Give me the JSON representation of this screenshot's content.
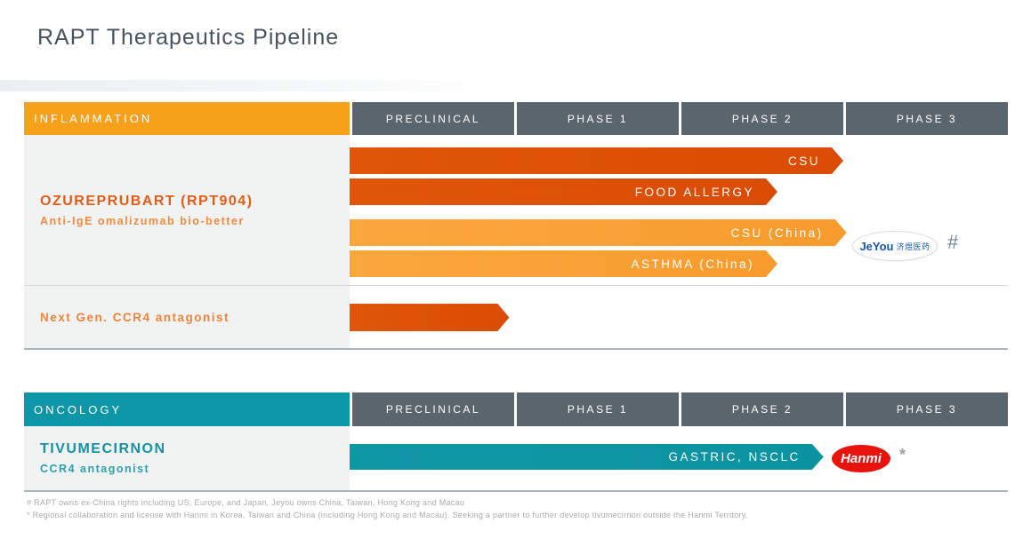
{
  "title": "RAPT Therapeutics Pipeline",
  "phases": [
    "PRECLINICAL",
    "PHASE 1",
    "PHASE 2",
    "PHASE 3"
  ],
  "colors": {
    "inflammation_header": "#f7a11a",
    "oncology_header": "#0d96a5",
    "phase_header": "#5a656e",
    "deep_orange_bar": "#dc5106",
    "light_orange_bar": "#f9a136",
    "teal_bar": "#0c93a2",
    "jeyou_blue": "#1a57a8",
    "hanmi_red": "#e8130c"
  },
  "sections": [
    {
      "name": "INFLAMMATION",
      "rows": [
        {
          "title": "OZUREPRUBART (RPT904)",
          "subtitle": "Anti-IgE omalizumab bio-better",
          "bars": [
            {
              "label": "CSU",
              "color": "deep-orange",
              "end_phase": 3.0
            },
            {
              "label": "FOOD ALLERGY",
              "color": "deep-orange",
              "end_phase": 2.6
            },
            {
              "label": "CSU (China)",
              "color": "light-orange",
              "end_phase": 3.02
            },
            {
              "label": "ASTHMA (China)",
              "color": "light-orange",
              "end_phase": 2.6
            }
          ],
          "partner_logo": {
            "name": "JeYou",
            "text": "JeYou",
            "cn": "济煜医药",
            "footnote_marker": "#"
          }
        },
        {
          "title": "Next Gen. CCR4 antagonist",
          "subtitle": "",
          "bars": [
            {
              "label": "",
              "color": "deep-orange",
              "end_phase": 0.97
            }
          ]
        }
      ]
    },
    {
      "name": "ONCOLOGY",
      "rows": [
        {
          "title": "TIVUMECIRNON",
          "subtitle": "CCR4 antagonist",
          "bars": [
            {
              "label": "GASTRIC, NSCLC",
              "color": "teal",
              "end_phase": 2.88
            }
          ],
          "partner_logo": {
            "name": "Hanmi",
            "text": "Hanmi",
            "footnote_marker": "*"
          }
        }
      ]
    }
  ],
  "footnotes": [
    "# RAPT owns ex-China rights including US, Europe, and Japan, Jeyou owns China, Taiwan, Hong Kong and Macau",
    "* Regional collaboration and license with Hanmi in Korea, Taiwan and China (including Hong Kong and Macau). Seeking a partner to further develop tivumecirnon outside the Hanmi Territory."
  ],
  "chart_data": {
    "type": "bar",
    "orientation": "horizontal",
    "title": "RAPT Therapeutics Pipeline",
    "x_axis_phases": [
      "PRECLINICAL",
      "PHASE 1",
      "PHASE 2",
      "PHASE 3"
    ],
    "scale_note": "progress in phase units: 1 = end of Preclinical, 2 = end of Phase 1, 3 = end of Phase 2, 4 = end of Phase 3",
    "series": [
      {
        "section": "INFLAMMATION",
        "program": "OZUREPRUBART (RPT904)",
        "indication": "CSU",
        "progress": 3.0
      },
      {
        "section": "INFLAMMATION",
        "program": "OZUREPRUBART (RPT904)",
        "indication": "FOOD ALLERGY",
        "progress": 2.6
      },
      {
        "section": "INFLAMMATION",
        "program": "OZUREPRUBART (RPT904)",
        "indication": "CSU (China)",
        "progress": 3.0
      },
      {
        "section": "INFLAMMATION",
        "program": "OZUREPRUBART (RPT904)",
        "indication": "ASTHMA (China)",
        "progress": 2.6
      },
      {
        "section": "INFLAMMATION",
        "program": "Next Gen. CCR4 antagonist",
        "indication": "",
        "progress": 0.97
      },
      {
        "section": "ONCOLOGY",
        "program": "TIVUMECIRNON",
        "indication": "GASTRIC, NSCLC",
        "progress": 2.88
      }
    ]
  }
}
